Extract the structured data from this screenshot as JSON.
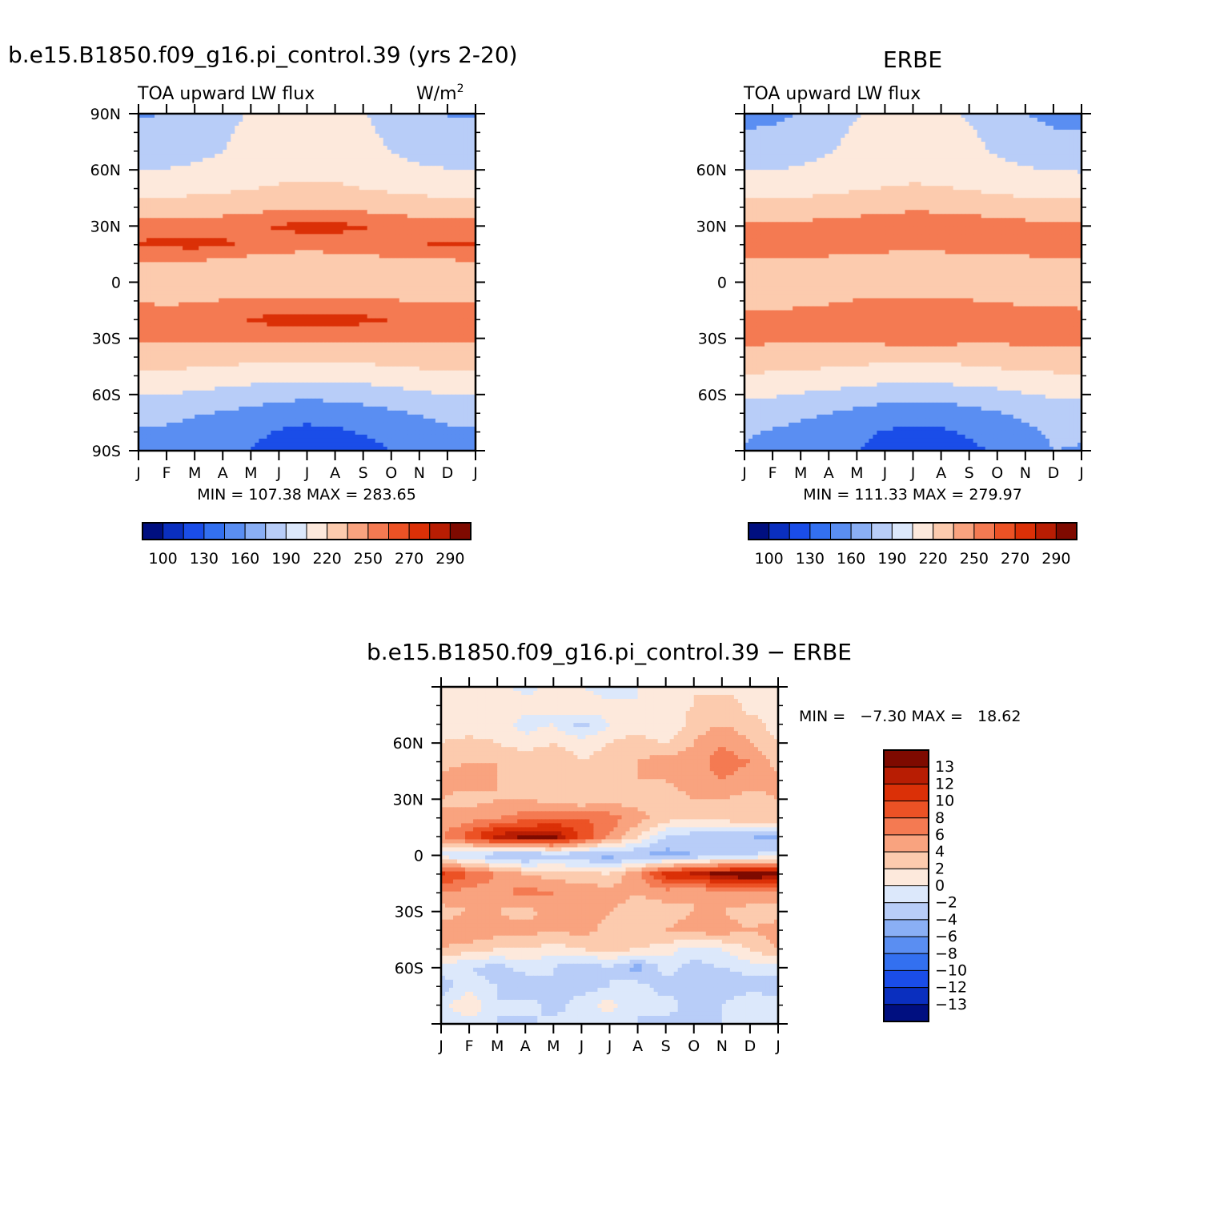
{
  "palette": [
    "#000f80",
    "#0a2fbf",
    "#1a4de8",
    "#3370f0",
    "#5a8ef2",
    "#8aaff5",
    "#b8cdf8",
    "#dce8fb",
    "#fde9dc",
    "#fccbae",
    "#f9a37f",
    "#f47a52",
    "#ec5225",
    "#db3007",
    "#b81d03",
    "#7e0a00"
  ],
  "panels": {
    "model": {
      "title": "b.e15.B1850.f09_g16.pi_control.39 (yrs 2-20)",
      "subtitle_left": "TOA upward LW flux",
      "units_base": "W/m",
      "units_exp": "2",
      "y_ticks": [
        "90N",
        "60N",
        "30N",
        "0",
        "30S",
        "60S",
        "90S"
      ],
      "stats": "MIN = 107.38 MAX = 283.65",
      "colorbar_labels": [
        "100",
        "130",
        "160",
        "190",
        "220",
        "250",
        "270",
        "290"
      ]
    },
    "obs": {
      "title": "ERBE",
      "subtitle_left": "TOA upward LW flux",
      "y_ticks": [
        "60N",
        "30N",
        "0",
        "30S",
        "60S"
      ],
      "stats": "MIN = 111.33 MAX = 279.97",
      "colorbar_labels": [
        "100",
        "130",
        "160",
        "190",
        "220",
        "250",
        "270",
        "290"
      ]
    },
    "diff": {
      "title": "b.e15.B1850.f09_g16.pi_control.39 − ERBE",
      "y_ticks": [
        "60N",
        "30N",
        "0",
        "30S",
        "60S"
      ],
      "stats": "MIN =   −7.30 MAX =   18.62",
      "colorbar_labels": [
        "13",
        "12",
        "10",
        "8",
        "6",
        "4",
        "2",
        "0",
        "−2",
        "−4",
        "−6",
        "−8",
        "−10",
        "−12",
        "−13"
      ]
    }
  },
  "chart_data": [
    {
      "type": "heatmap",
      "name": "model",
      "title": "b.e15.B1850.f09_g16.pi_control.39 (yrs 2-20)",
      "variable": "TOA upward LW flux",
      "units": "W/m2",
      "x": [
        "J",
        "F",
        "M",
        "A",
        "M",
        "J",
        "J",
        "A",
        "S",
        "O",
        "N",
        "D",
        "J"
      ],
      "y_range": [
        -90,
        90
      ],
      "min": 107.38,
      "max": 283.65,
      "levels": [
        100,
        130,
        160,
        190,
        220,
        250,
        270,
        290
      ],
      "lats": [
        -90,
        -80,
        -70,
        -60,
        -50,
        -40,
        -30,
        -20,
        -10,
        0,
        10,
        20,
        30,
        40,
        50,
        60,
        70,
        80,
        90
      ],
      "z": [
        [
          150,
          150,
          145,
          140,
          130,
          115,
          110,
          112,
          120,
          130,
          140,
          150,
          150
        ],
        [
          158,
          155,
          150,
          145,
          138,
          128,
          123,
          125,
          132,
          140,
          148,
          155,
          158
        ],
        [
          170,
          168,
          162,
          158,
          152,
          143,
          140,
          142,
          148,
          155,
          162,
          168,
          170
        ],
        [
          192,
          190,
          185,
          180,
          175,
          170,
          168,
          170,
          173,
          178,
          185,
          190,
          192
        ],
        [
          215,
          212,
          210,
          207,
          203,
          199,
          198,
          199,
          202,
          207,
          210,
          213,
          215
        ],
        [
          238,
          236,
          234,
          231,
          229,
          227,
          226,
          227,
          229,
          232,
          235,
          237,
          238
        ],
        [
          255,
          253,
          252,
          253,
          256,
          259,
          260,
          259,
          257,
          256,
          256,
          256,
          255
        ],
        [
          262,
          261,
          262,
          266,
          271,
          276,
          278,
          277,
          274,
          270,
          267,
          264,
          262
        ],
        [
          248,
          247,
          248,
          251,
          254,
          256,
          257,
          256,
          254,
          251,
          249,
          248,
          248
        ],
        [
          240,
          238,
          236,
          234,
          231,
          229,
          228,
          229,
          232,
          235,
          238,
          240,
          240
        ],
        [
          246,
          247,
          246,
          243,
          238,
          233,
          229,
          232,
          237,
          241,
          243,
          245,
          246
        ],
        [
          272,
          274,
          276,
          272,
          267,
          263,
          262,
          263,
          265,
          268,
          270,
          271,
          272
        ],
        [
          262,
          262,
          263,
          265,
          268,
          272,
          275,
          274,
          271,
          267,
          264,
          263,
          262
        ],
        [
          232,
          232,
          234,
          237,
          241,
          246,
          249,
          248,
          244,
          239,
          235,
          233,
          232
        ],
        [
          208,
          209,
          212,
          215,
          219,
          223,
          225,
          224,
          220,
          215,
          211,
          209,
          208
        ],
        [
          190,
          191,
          196,
          201,
          207,
          212,
          214,
          213,
          208,
          201,
          195,
          191,
          190
        ],
        [
          172,
          174,
          181,
          190,
          199,
          206,
          210,
          208,
          200,
          190,
          180,
          174,
          172
        ],
        [
          165,
          167,
          174,
          186,
          197,
          204,
          208,
          206,
          196,
          184,
          173,
          166,
          165
        ],
        [
          158,
          160,
          168,
          180,
          193,
          201,
          205,
          203,
          192,
          178,
          166,
          159,
          158
        ]
      ]
    },
    {
      "type": "heatmap",
      "name": "obs",
      "title": "ERBE",
      "variable": "TOA upward LW flux",
      "x": [
        "J",
        "F",
        "M",
        "A",
        "M",
        "J",
        "J",
        "A",
        "S",
        "O",
        "N",
        "D",
        "J"
      ],
      "y_range": [
        -90,
        90
      ],
      "min": 111.33,
      "max": 279.97,
      "levels": [
        100,
        130,
        160,
        190,
        220,
        250,
        270,
        290
      ],
      "lats": [
        -90,
        -80,
        -70,
        -60,
        -50,
        -40,
        -30,
        -20,
        -10,
        0,
        10,
        20,
        30,
        40,
        50,
        60,
        70,
        80,
        90
      ],
      "z": [
        [
          158,
          152,
          146,
          140,
          130,
          118,
          114,
          116,
          124,
          134,
          146,
          160,
          158
        ],
        [
          163,
          158,
          152,
          146,
          138,
          128,
          124,
          126,
          133,
          142,
          152,
          165,
          163
        ],
        [
          175,
          171,
          165,
          160,
          153,
          145,
          142,
          144,
          150,
          158,
          167,
          175,
          175
        ],
        [
          196,
          193,
          188,
          183,
          178,
          173,
          171,
          173,
          176,
          181,
          188,
          194,
          196
        ],
        [
          218,
          215,
          213,
          210,
          206,
          202,
          201,
          202,
          205,
          210,
          213,
          216,
          218
        ],
        [
          240,
          238,
          236,
          233,
          231,
          229,
          228,
          229,
          231,
          234,
          237,
          239,
          240
        ],
        [
          256,
          255,
          254,
          255,
          258,
          260,
          262,
          261,
          258,
          257,
          257,
          257,
          256
        ],
        [
          256,
          256,
          257,
          260,
          265,
          268,
          269,
          268,
          265,
          262,
          259,
          257,
          256
        ],
        [
          246,
          245,
          246,
          248,
          251,
          253,
          254,
          253,
          251,
          249,
          247,
          246,
          246
        ],
        [
          240,
          238,
          236,
          234,
          231,
          229,
          228,
          229,
          232,
          235,
          238,
          240,
          240
        ],
        [
          242,
          243,
          242,
          240,
          236,
          232,
          229,
          231,
          235,
          238,
          240,
          242,
          242
        ],
        [
          265,
          266,
          267,
          266,
          264,
          262,
          261,
          262,
          263,
          264,
          265,
          268,
          265
        ],
        [
          256,
          256,
          257,
          259,
          262,
          265,
          267,
          266,
          264,
          261,
          258,
          257,
          256
        ],
        [
          230,
          230,
          232,
          235,
          239,
          243,
          245,
          244,
          241,
          237,
          233,
          231,
          230
        ],
        [
          206,
          207,
          210,
          213,
          217,
          221,
          223,
          222,
          218,
          213,
          209,
          207,
          206
        ],
        [
          188,
          189,
          194,
          199,
          205,
          210,
          212,
          211,
          206,
          199,
          193,
          189,
          188
        ],
        [
          171,
          173,
          180,
          188,
          197,
          204,
          207,
          205,
          197,
          187,
          178,
          172,
          171
        ],
        [
          162,
          164,
          172,
          183,
          194,
          201,
          204,
          202,
          193,
          181,
          170,
          163,
          162
        ],
        [
          150,
          153,
          162,
          175,
          188,
          196,
          200,
          198,
          186,
          172,
          160,
          151,
          150
        ]
      ]
    },
    {
      "type": "heatmap",
      "name": "diff",
      "title": "b.e15.B1850.f09_g16.pi_control.39 − ERBE",
      "x": [
        "J",
        "F",
        "M",
        "A",
        "M",
        "J",
        "J",
        "A",
        "S",
        "O",
        "N",
        "D",
        "J"
      ],
      "y_range": [
        -90,
        90
      ],
      "min": -7.3,
      "max": 18.62,
      "levels": [
        -13,
        -12,
        -10,
        -8,
        -6,
        -4,
        -2,
        0,
        2,
        4,
        6,
        8,
        10,
        12,
        13
      ],
      "lats": [
        -90,
        -80,
        -70,
        -60,
        -50,
        -40,
        -30,
        -20,
        -10,
        0,
        10,
        20,
        30,
        40,
        50,
        60,
        70,
        80,
        90
      ],
      "z": [
        [
          -2,
          -1,
          -2,
          -3,
          -1,
          -2,
          -1,
          -2,
          -3,
          -2,
          -2,
          -1,
          -2
        ],
        [
          -1,
          2,
          -2,
          -1,
          -3,
          -1,
          1,
          -2,
          -1,
          -3,
          -2,
          0,
          -1
        ],
        [
          -3,
          -1,
          -2,
          -4,
          -2,
          -3,
          -2,
          -1,
          -3,
          -2,
          -4,
          -3,
          -3
        ],
        [
          -1,
          -2,
          -3,
          -1,
          -2,
          -4,
          -2,
          -5,
          -1,
          -3,
          -2,
          -1,
          -1
        ],
        [
          4,
          3,
          2,
          2,
          1,
          2,
          3,
          2,
          1,
          -1,
          0,
          2,
          4
        ],
        [
          5,
          6,
          5,
          5,
          4,
          5,
          3,
          4,
          4,
          5,
          5,
          4,
          5
        ],
        [
          3,
          4,
          4,
          3,
          5,
          6,
          4,
          3,
          3,
          4,
          4,
          3,
          3
        ],
        [
          6,
          5,
          5,
          7,
          6,
          5,
          5,
          4,
          5,
          4,
          5,
          6,
          6
        ],
        [
          11,
          8,
          6,
          4,
          3,
          3,
          2,
          6,
          11,
          13,
          14,
          15,
          14
        ],
        [
          -1,
          -2,
          -4,
          -5,
          -3,
          -4,
          -5,
          -4,
          -5,
          -4,
          -3,
          -2,
          -1
        ],
        [
          6,
          9,
          13,
          14,
          14,
          10,
          6,
          2,
          -2,
          -3,
          -4,
          -4,
          -5
        ],
        [
          4,
          5,
          6,
          7,
          8,
          8,
          7,
          5,
          3,
          2,
          3,
          4,
          4
        ],
        [
          4,
          3,
          4,
          4,
          3,
          2,
          3,
          3,
          3,
          4,
          4,
          3,
          4
        ],
        [
          5,
          5,
          4,
          3,
          4,
          3,
          3,
          4,
          4,
          5,
          6,
          5,
          5
        ],
        [
          3,
          4,
          4,
          3,
          4,
          2,
          3,
          4,
          5,
          5,
          7,
          6,
          3
        ],
        [
          2,
          3,
          2,
          1,
          2,
          1,
          2,
          3,
          2,
          4,
          6,
          4,
          2
        ],
        [
          1,
          0,
          1,
          -1,
          0,
          -3,
          0,
          1,
          0,
          3,
          4,
          3,
          1
        ],
        [
          2,
          1,
          2,
          1,
          0,
          2,
          1,
          0,
          1,
          2,
          4,
          1,
          2
        ],
        [
          1,
          2,
          1,
          -1,
          1,
          0,
          -2,
          0,
          1,
          2,
          1,
          1,
          1
        ]
      ]
    }
  ]
}
